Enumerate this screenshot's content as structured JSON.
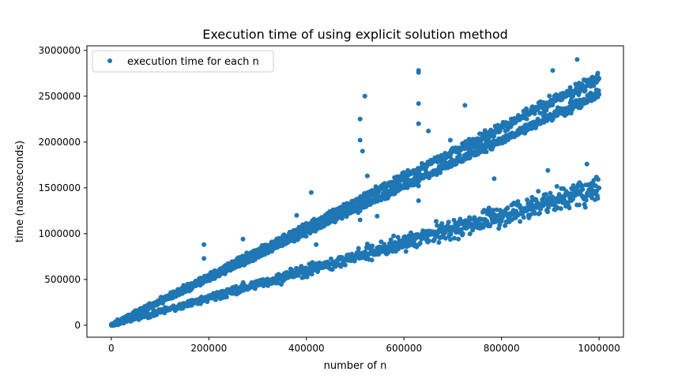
{
  "chart_data": {
    "type": "scatter",
    "title": "Execution time of using explicit solution method",
    "xlabel": "number of n",
    "ylabel": "time (nanoseconds)",
    "xlim": [
      -50000,
      1050000
    ],
    "ylim": [
      -130000,
      3050000
    ],
    "xticks": [
      0,
      200000,
      400000,
      600000,
      800000,
      1000000
    ],
    "yticks": [
      0,
      500000,
      1000000,
      1500000,
      2000000,
      2500000,
      3000000
    ],
    "xtick_labels": [
      "0",
      "200000",
      "400000",
      "600000",
      "800000",
      "1000000"
    ],
    "ytick_labels": [
      "0",
      "500000",
      "1000000",
      "1500000",
      "2000000",
      "2500000",
      "3000000"
    ],
    "legend_position": "upper-left",
    "marker_color": "#1f77b4",
    "series": [
      {
        "name": "execution time for each n",
        "bands": [
          {
            "slope": 2.7,
            "spread": 0.012,
            "n_from": 0,
            "n_to": 1000000
          },
          {
            "slope": 2.53,
            "spread": 0.01,
            "n_from": 0,
            "n_to": 1000000
          },
          {
            "slope": 1.5,
            "spread": 0.045,
            "n_from": 0,
            "n_to": 1000000
          }
        ],
        "outliers": [
          {
            "x": 630000,
            "y": 2780000
          },
          {
            "x": 630000,
            "y": 2760000
          },
          {
            "x": 520000,
            "y": 2500000
          },
          {
            "x": 630000,
            "y": 2420000
          },
          {
            "x": 510000,
            "y": 2250000
          },
          {
            "x": 630000,
            "y": 2200000
          },
          {
            "x": 510000,
            "y": 2020000
          },
          {
            "x": 515000,
            "y": 1900000
          },
          {
            "x": 955000,
            "y": 2900000
          },
          {
            "x": 905000,
            "y": 2780000
          },
          {
            "x": 725000,
            "y": 2400000
          },
          {
            "x": 650000,
            "y": 2120000
          },
          {
            "x": 695000,
            "y": 2020000
          },
          {
            "x": 190000,
            "y": 880000
          },
          {
            "x": 190000,
            "y": 730000
          },
          {
            "x": 270000,
            "y": 940000
          },
          {
            "x": 380000,
            "y": 1200000
          },
          {
            "x": 410000,
            "y": 1450000
          },
          {
            "x": 525000,
            "y": 1630000
          },
          {
            "x": 630000,
            "y": 1520000
          },
          {
            "x": 630000,
            "y": 1360000
          },
          {
            "x": 510000,
            "y": 1250000
          },
          {
            "x": 510000,
            "y": 1150000
          },
          {
            "x": 545000,
            "y": 1190000
          },
          {
            "x": 785000,
            "y": 1600000
          },
          {
            "x": 895000,
            "y": 1690000
          },
          {
            "x": 975000,
            "y": 1760000
          },
          {
            "x": 600000,
            "y": 960000
          },
          {
            "x": 420000,
            "y": 880000
          }
        ]
      }
    ]
  }
}
